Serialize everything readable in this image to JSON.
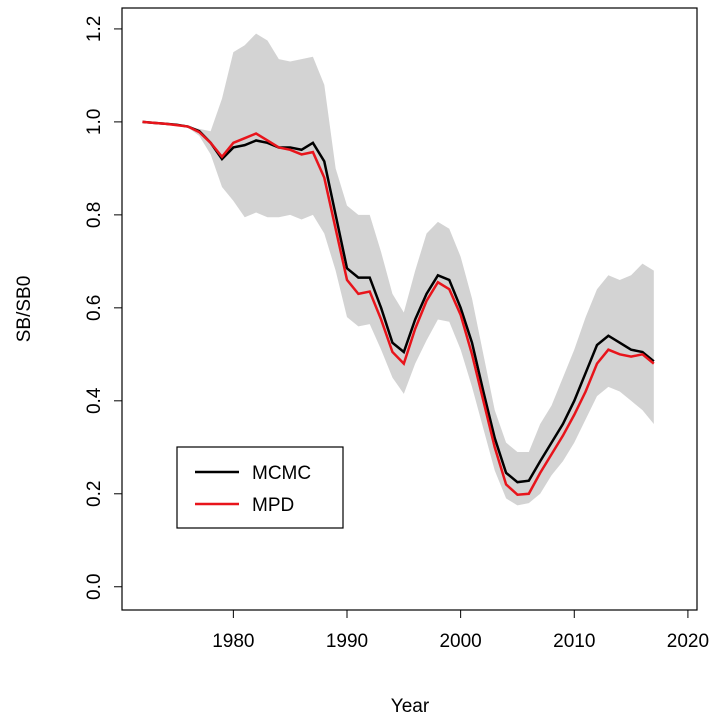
{
  "chart_data": {
    "type": "line",
    "x_label": "Year",
    "y_label": "SB/SB0",
    "x": [
      1972,
      1973,
      1974,
      1975,
      1976,
      1977,
      1978,
      1979,
      1980,
      1981,
      1982,
      1983,
      1984,
      1985,
      1986,
      1987,
      1988,
      1989,
      1990,
      1991,
      1992,
      1993,
      1994,
      1995,
      1996,
      1997,
      1998,
      1999,
      2000,
      2001,
      2002,
      2003,
      2004,
      2005,
      2006,
      2007,
      2008,
      2009,
      2010,
      2011,
      2012,
      2013,
      2014,
      2015,
      2016,
      2017
    ],
    "series": [
      {
        "name": "MCMC",
        "color": "#000000",
        "values": [
          1.0,
          0.998,
          0.996,
          0.994,
          0.99,
          0.98,
          0.955,
          0.92,
          0.945,
          0.95,
          0.96,
          0.955,
          0.945,
          0.945,
          0.94,
          0.955,
          0.915,
          0.8,
          0.685,
          0.665,
          0.665,
          0.6,
          0.525,
          0.505,
          0.575,
          0.63,
          0.67,
          0.66,
          0.6,
          0.525,
          0.42,
          0.32,
          0.245,
          0.225,
          0.228,
          0.27,
          0.31,
          0.35,
          0.4,
          0.46,
          0.52,
          0.54,
          0.525,
          0.51,
          0.505,
          0.485
        ]
      },
      {
        "name": "MPD",
        "color": "#e8141b",
        "values": [
          1.0,
          0.998,
          0.996,
          0.993,
          0.99,
          0.978,
          0.955,
          0.925,
          0.955,
          0.965,
          0.975,
          0.96,
          0.945,
          0.94,
          0.93,
          0.935,
          0.88,
          0.77,
          0.66,
          0.63,
          0.635,
          0.575,
          0.505,
          0.48,
          0.555,
          0.615,
          0.655,
          0.64,
          0.585,
          0.5,
          0.4,
          0.3,
          0.22,
          0.198,
          0.2,
          0.245,
          0.285,
          0.325,
          0.37,
          0.42,
          0.48,
          0.51,
          0.5,
          0.495,
          0.5,
          0.48
        ]
      }
    ],
    "interval": {
      "color": "#d3d3d3",
      "upper": [
        1.0,
        0.998,
        0.996,
        0.994,
        0.99,
        0.985,
        0.98,
        1.05,
        1.15,
        1.165,
        1.19,
        1.175,
        1.135,
        1.13,
        1.135,
        1.14,
        1.08,
        0.9,
        0.82,
        0.8,
        0.8,
        0.72,
        0.63,
        0.59,
        0.68,
        0.76,
        0.785,
        0.77,
        0.71,
        0.62,
        0.5,
        0.38,
        0.31,
        0.29,
        0.29,
        0.35,
        0.39,
        0.45,
        0.51,
        0.58,
        0.64,
        0.67,
        0.66,
        0.67,
        0.695,
        0.68
      ],
      "lower": [
        1.0,
        0.998,
        0.996,
        0.993,
        0.988,
        0.97,
        0.93,
        0.86,
        0.83,
        0.795,
        0.805,
        0.795,
        0.795,
        0.8,
        0.79,
        0.8,
        0.76,
        0.68,
        0.58,
        0.56,
        0.565,
        0.51,
        0.45,
        0.415,
        0.48,
        0.53,
        0.575,
        0.57,
        0.51,
        0.43,
        0.34,
        0.25,
        0.19,
        0.175,
        0.18,
        0.2,
        0.24,
        0.27,
        0.31,
        0.36,
        0.41,
        0.43,
        0.42,
        0.4,
        0.38,
        0.35
      ]
    },
    "xlim": [
      1970.2,
      2020.8
    ],
    "ylim": [
      -0.05,
      1.245
    ],
    "xticks": [
      1980,
      1990,
      2000,
      2010,
      2020
    ],
    "yticks": [
      {
        "value": 0,
        "label": "0.0"
      },
      {
        "value": 0.2,
        "label": "0.2"
      },
      {
        "value": 0.4,
        "label": "0.4"
      },
      {
        "value": 0.6,
        "label": "0.6"
      },
      {
        "value": 0.8,
        "label": "0.8"
      },
      {
        "value": 1,
        "label": "1.0"
      },
      {
        "value": 1.2,
        "label": "1.2"
      }
    ],
    "legend": "bottom-left"
  }
}
